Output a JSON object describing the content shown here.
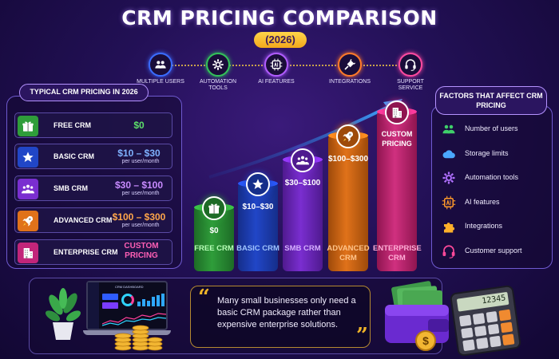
{
  "title": "CRM PRICING COMPARISON",
  "year": "(2026)",
  "features": [
    {
      "label": "MULTIPLE USERS",
      "icon": "users-icon"
    },
    {
      "label": "AUTOMATION TOOLS",
      "icon": "gear-icon"
    },
    {
      "label": "AI FEATURES",
      "icon": "ai-chip-icon"
    },
    {
      "label": "INTEGRATIONS",
      "icon": "plug-icon"
    },
    {
      "label": "SUPPORT SERVICE",
      "icon": "headset-icon"
    }
  ],
  "left_panel": {
    "header": "TYPICAL CRM PRICING IN 2026",
    "tiers": [
      {
        "name": "FREE CRM",
        "price": "$0",
        "per": "",
        "color": "#2f9d3a",
        "price_color": "#5de06a",
        "icon": "gift-icon"
      },
      {
        "name": "BASIC CRM",
        "price": "$10 – $30",
        "per": "per user/month",
        "color": "#2146c7",
        "price_color": "#7fb2ff",
        "icon": "star-icon"
      },
      {
        "name": "SMB CRM",
        "price": "$30 – $100",
        "per": "per user/month",
        "color": "#7a2ed0",
        "price_color": "#c88bff",
        "icon": "team-icon"
      },
      {
        "name": "ADVANCED CRM",
        "price": "$100 – $300",
        "per": "per user/month",
        "color": "#e0721a",
        "price_color": "#ffa64a",
        "icon": "rocket-icon"
      },
      {
        "name": "ENTERPRISE CRM",
        "price": "CUSTOM PRICING",
        "per": "",
        "color": "#c2257a",
        "price_color": "#ff5fb5",
        "icon": "building-icon"
      }
    ]
  },
  "bars": [
    {
      "price": "$0",
      "label": "FREE CRM",
      "level": 1,
      "color": "#2f9d3a",
      "dark": "#1d6b26",
      "text_color": "#b8ffb8",
      "icon": "gift-icon"
    },
    {
      "price": "$10–$30",
      "label": "BASIC CRM",
      "level": 2,
      "color": "#2146c7",
      "dark": "#152e8a",
      "text_color": "#9fc4ff",
      "icon": "star-icon"
    },
    {
      "price": "$30–$100",
      "label": "SMB CRM",
      "level": 3,
      "color": "#7a2ed0",
      "dark": "#4f1a8f",
      "text_color": "#d6b0ff",
      "icon": "team-icon"
    },
    {
      "price": "$100–$300",
      "label": "ADVANCED CRM",
      "level": 4,
      "color": "#e0721a",
      "dark": "#9e4a0a",
      "text_color": "#ffc48a",
      "icon": "rocket-icon"
    },
    {
      "price": "CUSTOM PRICING",
      "label": "ENTERPRISE CRM",
      "level": 5,
      "color": "#d0307f",
      "dark": "#8f1550",
      "text_color": "#ffaed6",
      "icon": "building-icon"
    }
  ],
  "right_panel": {
    "header": "FACTORS THAT AFFECT CRM PRICING",
    "factors": [
      {
        "label": "Number of users",
        "icon": "users-icon"
      },
      {
        "label": "Storage limits",
        "icon": "cloud-icon"
      },
      {
        "label": "Automation tools",
        "icon": "gear-icon"
      },
      {
        "label": "AI features",
        "icon": "ai-chip-icon"
      },
      {
        "label": "Integrations",
        "icon": "puzzle-icon"
      },
      {
        "label": "Customer support",
        "icon": "headset-icon"
      }
    ]
  },
  "dashboard": {
    "title": "CRM DASHBOARD"
  },
  "quote": {
    "text": "Many small businesses only need a basic CRM package rather than expensive enterprise solutions.",
    "open_mark": "“",
    "close_mark": "”"
  },
  "calculator": {
    "display": "12345"
  },
  "coin": {
    "symbol": "$"
  }
}
